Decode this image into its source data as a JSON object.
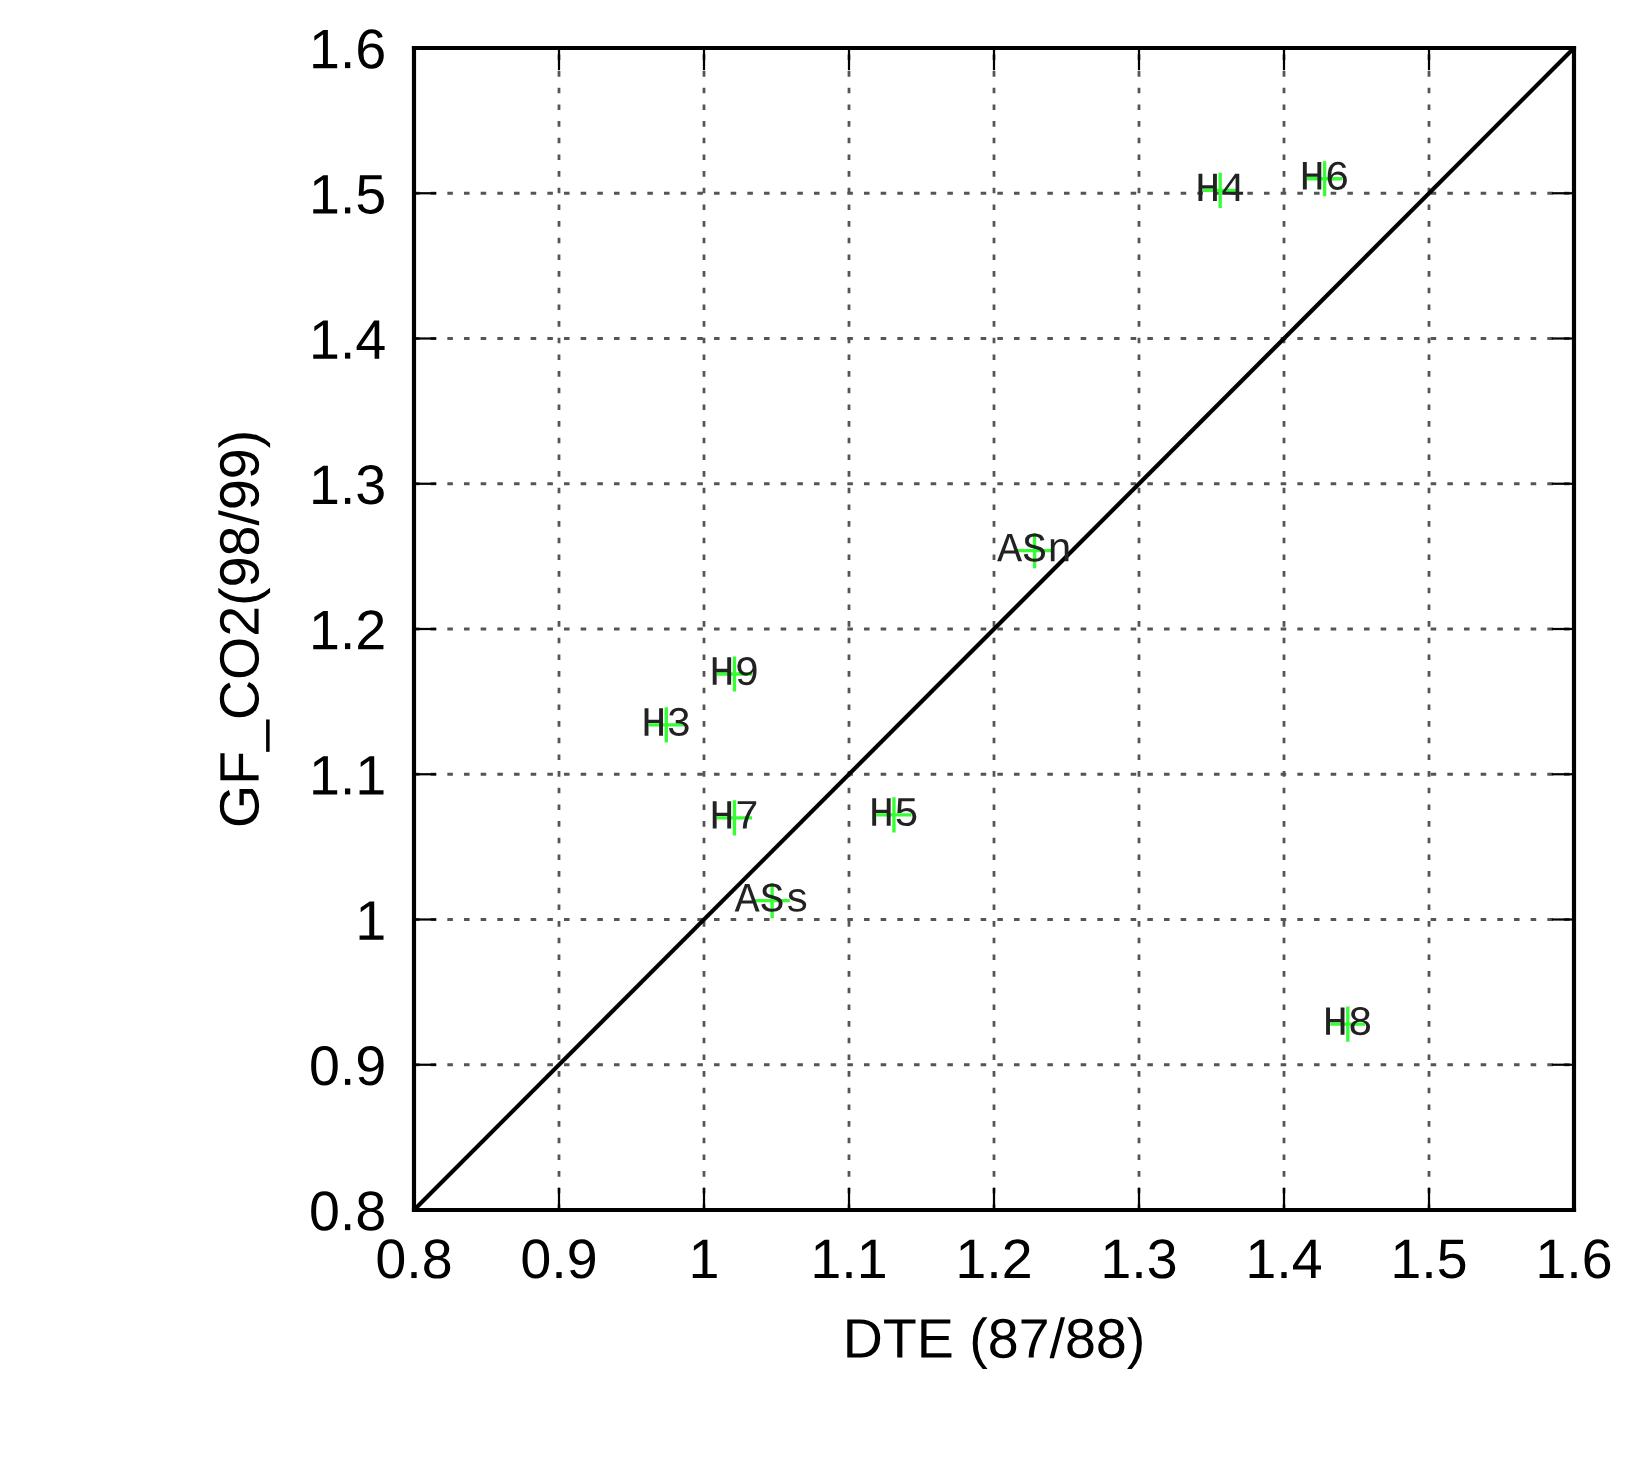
{
  "chart_data": {
    "type": "scatter",
    "xlabel": "DTE (87/88)",
    "ylabel": "GF_CO2(98/99)",
    "xlim": [
      0.8,
      1.6
    ],
    "ylim": [
      0.8,
      1.6
    ],
    "xticks": [
      0.8,
      0.9,
      1,
      1.1,
      1.2,
      1.3,
      1.4,
      1.5,
      1.6
    ],
    "yticks": [
      0.8,
      0.9,
      1,
      1.1,
      1.2,
      1.3,
      1.4,
      1.5,
      1.6
    ],
    "grid": true,
    "marker": "cross",
    "series": [
      {
        "color": "#33ff33",
        "x": [
          1.228,
          1.021,
          0.974,
          1.021,
          1.131,
          1.047,
          1.356,
          1.428,
          1.444
        ],
        "values": [
          1.254,
          1.169,
          1.134,
          1.07,
          1.072,
          1.013,
          1.502,
          1.51,
          0.928
        ]
      },
      {
        "type": "line",
        "color": "#000000",
        "x": [
          0.8,
          1.6
        ],
        "values": [
          0.8,
          1.6
        ],
        "marker": "none"
      }
    ],
    "annotations": [
      {
        "text": "ASn",
        "x": 1.228,
        "y": 1.254
      },
      {
        "text": "H9",
        "x": 1.021,
        "y": 1.169
      },
      {
        "text": "H3",
        "x": 0.974,
        "y": 1.134
      },
      {
        "text": "H7",
        "x": 1.021,
        "y": 1.07
      },
      {
        "text": "H5",
        "x": 1.131,
        "y": 1.072
      },
      {
        "text": "ASs",
        "x": 1.047,
        "y": 1.013
      },
      {
        "text": "H4",
        "x": 1.356,
        "y": 1.502
      },
      {
        "text": "H6",
        "x": 1.428,
        "y": 1.51
      },
      {
        "text": "H8",
        "x": 1.444,
        "y": 0.928
      }
    ]
  }
}
